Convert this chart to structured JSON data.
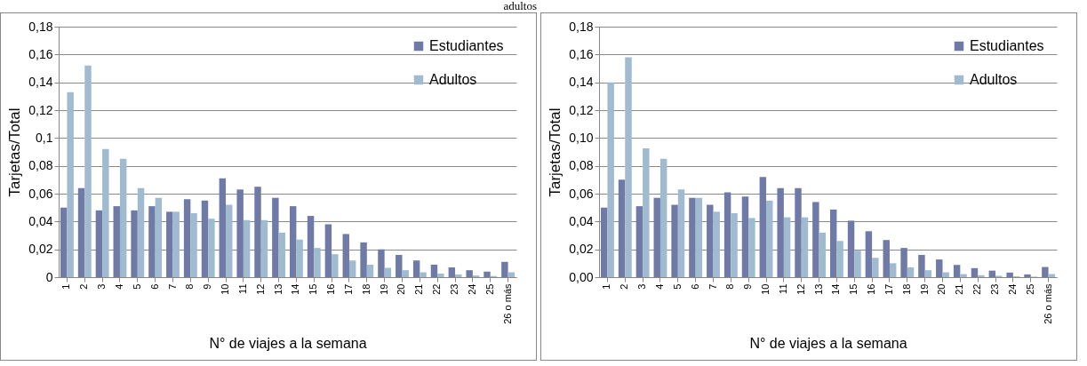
{
  "chart_data": [
    {
      "type": "bar",
      "title": "adultos",
      "xlabel": "N° de viajes a la semana",
      "ylabel": "Tarjetas/Total",
      "categories": [
        "1",
        "2",
        "3",
        "4",
        "5",
        "6",
        "7",
        "8",
        "9",
        "10",
        "11",
        "12",
        "13",
        "14",
        "15",
        "16",
        "17",
        "18",
        "19",
        "20",
        "21",
        "22",
        "23",
        "24",
        "25",
        "26 o más"
      ],
      "series": [
        {
          "name": "Estudiantes",
          "color": "#6f7aa6",
          "values": [
            0.05,
            0.064,
            0.048,
            0.051,
            0.048,
            0.051,
            0.047,
            0.056,
            0.055,
            0.071,
            0.063,
            0.065,
            0.057,
            0.051,
            0.044,
            0.038,
            0.031,
            0.025,
            0.02,
            0.016,
            0.012,
            0.009,
            0.007,
            0.005,
            0.004,
            0.011
          ]
        },
        {
          "name": "Adultos",
          "color": "#a0bad0",
          "values": [
            0.133,
            0.152,
            0.092,
            0.085,
            0.064,
            0.057,
            0.047,
            0.046,
            0.042,
            0.052,
            0.041,
            0.041,
            0.032,
            0.027,
            0.021,
            0.0165,
            0.012,
            0.009,
            0.0067,
            0.005,
            0.0035,
            0.0025,
            0.0019,
            0.0012,
            0.0008,
            0.0035
          ]
        }
      ],
      "ylim": [
        0,
        0.18
      ],
      "yticks": [
        {
          "value": 0,
          "label": "0"
        },
        {
          "value": 0.02,
          "label": "0,02"
        },
        {
          "value": 0.04,
          "label": "0,04"
        },
        {
          "value": 0.06,
          "label": "0,06"
        },
        {
          "value": 0.08,
          "label": "0,08"
        },
        {
          "value": 0.1,
          "label": "0,1"
        },
        {
          "value": 0.12,
          "label": "0,12"
        },
        {
          "value": 0.14,
          "label": "0,14"
        },
        {
          "value": 0.16,
          "label": "0,16"
        },
        {
          "value": 0.18,
          "label": "0,18"
        }
      ],
      "grid": "y",
      "legend": "top right"
    },
    {
      "type": "bar",
      "xlabel": "N° de viajes a la semana",
      "ylabel": "Tarjetas/Total",
      "categories": [
        "1",
        "2",
        "3",
        "4",
        "5",
        "6",
        "7",
        "8",
        "9",
        "10",
        "11",
        "12",
        "13",
        "14",
        "15",
        "16",
        "17",
        "18",
        "19",
        "20",
        "21",
        "22",
        "23",
        "24",
        "25",
        "26 o más"
      ],
      "series": [
        {
          "name": "Estudiantes",
          "color": "#6f7aa6",
          "values": [
            0.05,
            0.07,
            0.051,
            0.057,
            0.052,
            0.057,
            0.052,
            0.061,
            0.058,
            0.072,
            0.064,
            0.064,
            0.054,
            0.0486,
            0.0406,
            0.033,
            0.0267,
            0.021,
            0.016,
            0.0127,
            0.0088,
            0.0065,
            0.0047,
            0.0033,
            0.002,
            0.0073
          ]
        },
        {
          "name": "Adultos",
          "color": "#a0bad0",
          "values": [
            0.14,
            0.158,
            0.0926,
            0.085,
            0.063,
            0.057,
            0.047,
            0.046,
            0.0425,
            0.055,
            0.043,
            0.043,
            0.032,
            0.026,
            0.019,
            0.0139,
            0.01,
            0.007,
            0.005,
            0.0035,
            0.0022,
            0.0014,
            0.001,
            0.0006,
            0.0004,
            0.0022
          ]
        }
      ],
      "ylim": [
        0,
        0.18
      ],
      "yticks": [
        {
          "value": 0,
          "label": "0,00"
        },
        {
          "value": 0.02,
          "label": "0,02"
        },
        {
          "value": 0.04,
          "label": "0,04"
        },
        {
          "value": 0.06,
          "label": "0,06"
        },
        {
          "value": 0.08,
          "label": "0,08"
        },
        {
          "value": 0.1,
          "label": "0,10"
        },
        {
          "value": 0.12,
          "label": "0,12"
        },
        {
          "value": 0.14,
          "label": "0,14"
        },
        {
          "value": 0.16,
          "label": "0,16"
        },
        {
          "value": 0.18,
          "label": "0,18"
        }
      ],
      "grid": "y",
      "legend": "top right"
    }
  ]
}
